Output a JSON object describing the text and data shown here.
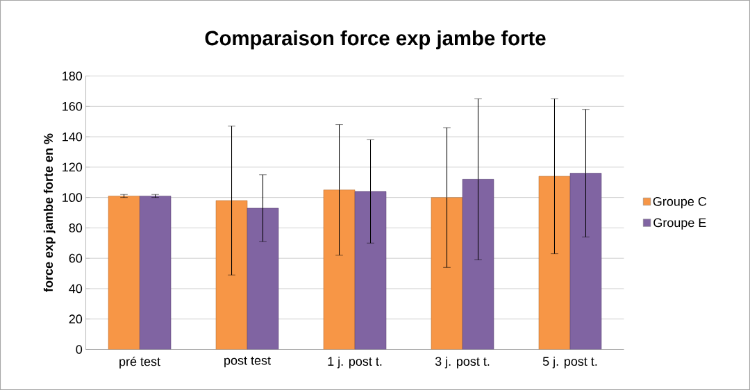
{
  "chart_data": {
    "type": "bar",
    "title": "Comparaison force exp jambe forte",
    "ylabel": "force exp jambe forte en %",
    "categories": [
      "pré test",
      "post test",
      "1 j. post t.",
      "3 j. post t.",
      "5 j. post t."
    ],
    "series": [
      {
        "name": "Groupe C",
        "color": "#f79646",
        "values": [
          101,
          98,
          105,
          100,
          114
        ],
        "errors": [
          1,
          49,
          43,
          46,
          51
        ]
      },
      {
        "name": "Groupe E",
        "color": "#8064a2",
        "values": [
          101,
          93,
          104,
          112,
          116
        ],
        "errors": [
          1,
          22,
          34,
          53,
          42
        ]
      }
    ],
    "ylim": [
      0,
      180
    ],
    "yticks": [
      0,
      20,
      40,
      60,
      80,
      100,
      120,
      140,
      160,
      180
    ],
    "grid": "y",
    "legend": "right"
  }
}
